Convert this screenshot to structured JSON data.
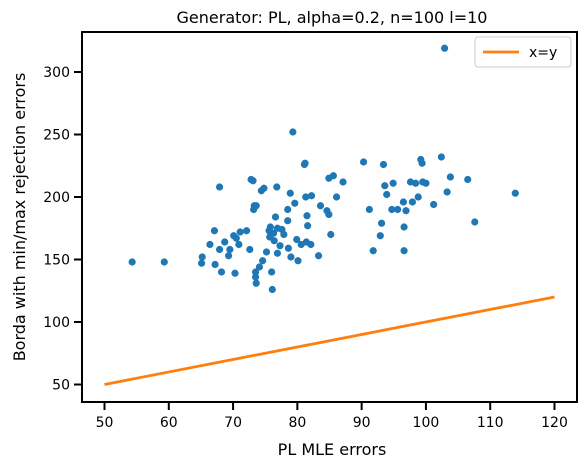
{
  "chart_data": {
    "type": "scatter",
    "title": "Generator: PL, alpha=0.2, n=100 l=10",
    "xlabel": "PL MLE errors",
    "ylabel": "Borda with min/max rejection errors",
    "xlim": [
      46.5,
      123.5
    ],
    "ylim": [
      36,
      332
    ],
    "xticks": [
      50,
      60,
      70,
      80,
      90,
      100,
      110,
      120
    ],
    "yticks": [
      50,
      100,
      150,
      200,
      250,
      300
    ],
    "grid": false,
    "legend": {
      "position": "top-right",
      "entries": [
        {
          "label": "x=y",
          "color": "#ff7f0e"
        }
      ]
    },
    "colors": {
      "points": "#1f77b4",
      "line": "#ff7f0e"
    },
    "series": [
      {
        "type": "scatter",
        "points": [
          [
            54.3,
            148
          ],
          [
            59.3,
            148
          ],
          [
            65.1,
            147
          ],
          [
            65.2,
            152
          ],
          [
            66.4,
            162
          ],
          [
            67.1,
            173
          ],
          [
            67.2,
            146
          ],
          [
            67.9,
            158
          ],
          [
            67.9,
            208
          ],
          [
            68.2,
            140
          ],
          [
            68.7,
            164
          ],
          [
            69.3,
            153
          ],
          [
            69.5,
            158
          ],
          [
            70.1,
            169
          ],
          [
            70.3,
            139
          ],
          [
            70.5,
            167
          ],
          [
            70.9,
            162
          ],
          [
            71.1,
            172
          ],
          [
            72.1,
            173
          ],
          [
            72.6,
            158
          ],
          [
            72.8,
            214
          ],
          [
            73.1,
            213
          ],
          [
            73.2,
            190
          ],
          [
            73.3,
            193
          ],
          [
            73.5,
            140
          ],
          [
            73.6,
            131
          ],
          [
            73.5,
            136
          ],
          [
            73.6,
            193
          ],
          [
            74.1,
            144
          ],
          [
            74.4,
            205
          ],
          [
            74.6,
            149
          ],
          [
            74.8,
            207
          ],
          [
            75.2,
            156
          ],
          [
            75.6,
            173
          ],
          [
            75.7,
            168
          ],
          [
            75.8,
            176
          ],
          [
            76.0,
            140
          ],
          [
            76.1,
            126
          ],
          [
            76.3,
            171
          ],
          [
            76.4,
            165
          ],
          [
            76.6,
            184
          ],
          [
            76.8,
            208
          ],
          [
            76.9,
            175
          ],
          [
            76.9,
            155
          ],
          [
            77.3,
            161
          ],
          [
            77.6,
            174
          ],
          [
            77.9,
            170
          ],
          [
            78.5,
            190
          ],
          [
            78.5,
            181
          ],
          [
            78.6,
            159
          ],
          [
            78.9,
            203
          ],
          [
            79.0,
            152
          ],
          [
            79.3,
            252
          ],
          [
            79.6,
            195
          ],
          [
            79.9,
            166
          ],
          [
            80.1,
            149
          ],
          [
            80.6,
            162
          ],
          [
            81.1,
            226
          ],
          [
            81.2,
            227
          ],
          [
            81.4,
            164
          ],
          [
            81.3,
            200
          ],
          [
            81.5,
            185
          ],
          [
            81.6,
            177
          ],
          [
            82.1,
            162
          ],
          [
            82.2,
            201
          ],
          [
            83.3,
            153
          ],
          [
            83.6,
            193
          ],
          [
            84.6,
            189
          ],
          [
            84.9,
            215
          ],
          [
            84.9,
            186
          ],
          [
            85.2,
            170
          ],
          [
            85.6,
            217
          ],
          [
            86.1,
            200
          ],
          [
            87.1,
            212
          ],
          [
            90.3,
            228
          ],
          [
            91.2,
            190
          ],
          [
            91.8,
            157
          ],
          [
            92.9,
            169
          ],
          [
            93.1,
            179
          ],
          [
            93.4,
            226
          ],
          [
            93.6,
            209
          ],
          [
            93.9,
            202
          ],
          [
            94.7,
            190
          ],
          [
            94.9,
            211
          ],
          [
            95.6,
            190
          ],
          [
            96.5,
            196
          ],
          [
            96.6,
            157
          ],
          [
            96.6,
            176
          ],
          [
            96.9,
            189
          ],
          [
            97.6,
            212
          ],
          [
            97.9,
            196
          ],
          [
            98.4,
            211
          ],
          [
            98.8,
            200
          ],
          [
            99.2,
            230
          ],
          [
            99.4,
            227
          ],
          [
            99.5,
            212
          ],
          [
            100.0,
            211
          ],
          [
            101.2,
            194
          ],
          [
            102.4,
            232
          ],
          [
            102.9,
            319
          ],
          [
            103.3,
            204
          ],
          [
            103.8,
            216
          ],
          [
            106.5,
            214
          ],
          [
            107.6,
            180
          ],
          [
            113.9,
            203
          ]
        ]
      },
      {
        "type": "line",
        "name": "x=y",
        "points": [
          [
            50,
            50
          ],
          [
            120,
            120
          ]
        ]
      }
    ]
  }
}
